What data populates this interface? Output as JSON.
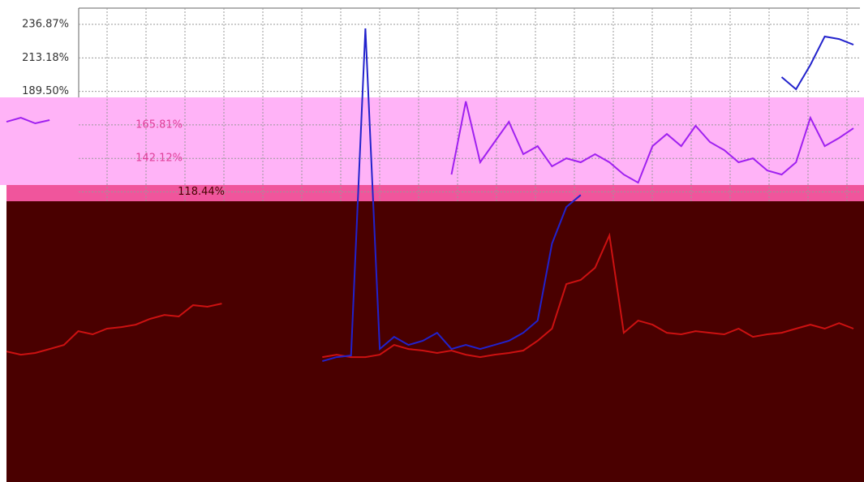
{
  "chart_data": {
    "type": "line",
    "categories": [
      null,
      null,
      null,
      null,
      null,
      null,
      null,
      null,
      null,
      null,
      null,
      null,
      null,
      null,
      null,
      null,
      null,
      null,
      null,
      null,
      null,
      null,
      null,
      null,
      null,
      null,
      null,
      null,
      null,
      null,
      null,
      null,
      null,
      null,
      null,
      null,
      null,
      null,
      null,
      null,
      null,
      null,
      null,
      null,
      null,
      null,
      null,
      null,
      null,
      null,
      null,
      null,
      null,
      null,
      null,
      null,
      null,
      null,
      null,
      null
    ],
    "series": [
      {
        "color": "#cc1111",
        "values": [
          5.7,
          3.4,
          4.6,
          7.4,
          10.3,
          20.0,
          17.8,
          21.8,
          22.9,
          24.6,
          28.7,
          31.5,
          30.4,
          38.4,
          37.3,
          39.5,
          null,
          null,
          null,
          null,
          null,
          null,
          1.7,
          3.4,
          1.7,
          1.7,
          3.4,
          10.3,
          7.4,
          6.3,
          4.6,
          6.3,
          3.4,
          1.7,
          3.4,
          4.6,
          6.3,
          13.2,
          21.8,
          53.3,
          56.2,
          64.8,
          87.7,
          18.9,
          27.5,
          24.6,
          18.9,
          17.8,
          20.0,
          18.9,
          17.8,
          21.8,
          16.0,
          17.8,
          18.9,
          21.8,
          24.6,
          21.8,
          25.7,
          21.8
        ]
      },
      {
        "color": "#2222cc",
        "values": [
          null,
          null,
          null,
          null,
          null,
          null,
          null,
          null,
          null,
          null,
          null,
          null,
          null,
          null,
          null,
          null,
          null,
          null,
          null,
          null,
          null,
          null,
          -1.2,
          1.7,
          2.8,
          234.0,
          7.4,
          16.0,
          10.3,
          13.2,
          18.9,
          7.4,
          10.3,
          7.4,
          10.3,
          13.2,
          18.9,
          27.5,
          81.9,
          107.8,
          116.3,
          null,
          null,
          null,
          null,
          null,
          null,
          null,
          null,
          null,
          null,
          null,
          null,
          null,
          199.6,
          191.0,
          208.2,
          228.3,
          226.5,
          222.5
        ]
      },
      {
        "color": "#a020f0",
        "values": [
          168.0,
          170.9,
          166.9,
          169.2,
          null,
          null,
          null,
          null,
          null,
          null,
          null,
          null,
          null,
          null,
          null,
          null,
          null,
          null,
          null,
          null,
          null,
          null,
          null,
          null,
          null,
          null,
          null,
          null,
          null,
          null,
          null,
          130.7,
          182.4,
          139.4,
          153.7,
          168.0,
          145.1,
          150.8,
          136.5,
          142.2,
          139.4,
          145.1,
          139.4,
          130.7,
          125.0,
          150.8,
          159.4,
          150.8,
          165.2,
          153.7,
          148.0,
          139.4,
          142.2,
          133.6,
          130.7,
          139.4,
          170.9,
          150.8,
          156.6,
          163.4
        ]
      }
    ],
    "ylim": [
      -86.6,
      254.1
    ],
    "yticks": [
      {
        "value": 236.87,
        "label": "236.87%"
      },
      {
        "value": 213.18,
        "label": "213.18%"
      },
      {
        "value": 189.5,
        "label": "189.50%"
      },
      {
        "value": 165.81,
        "label": "165.81%"
      },
      {
        "value": 142.12,
        "label": "142.12%"
      },
      {
        "value": 118.44,
        "label": "118.44%"
      }
    ],
    "grid": true
  }
}
